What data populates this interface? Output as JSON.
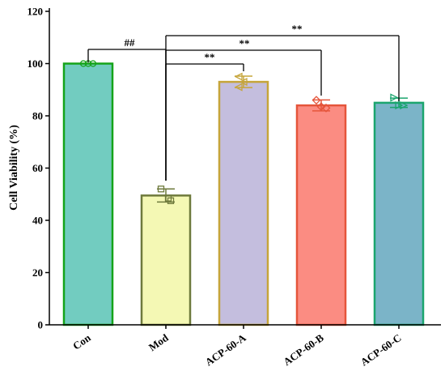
{
  "chart_data": {
    "type": "bar",
    "title": "",
    "xlabel": "",
    "ylabel": "Cell Viability (%)",
    "ylim": [
      0,
      120
    ],
    "yticks": [
      "0",
      "20",
      "40",
      "60",
      "80",
      "100",
      "120"
    ],
    "categories": [
      "Con",
      "Mod",
      "ACP-60-A",
      "ACP-60-B",
      "ACP-60-C"
    ],
    "values": [
      100,
      49.5,
      93,
      84,
      85
    ],
    "errors": [
      0,
      2.5,
      2.2,
      2.1,
      1.8
    ],
    "points": [
      [
        100,
        100,
        100
      ],
      [
        52,
        48.5,
        47.5
      ],
      [
        95,
        93,
        91
      ],
      [
        86,
        83,
        83.5
      ],
      [
        87,
        84,
        84
      ]
    ],
    "markers": [
      "circle",
      "square",
      "triangle",
      "diamond",
      "triangle-right"
    ],
    "fill_colors": [
      "#72CCC0",
      "#F4F8B4",
      "#C4BEDE",
      "#FB8C82",
      "#7BB4C8"
    ],
    "edge_colors": [
      "#15A319",
      "#6E7A3C",
      "#C6A53A",
      "#E5553B",
      "#1BA56E"
    ],
    "significance": [
      {
        "from": "Con",
        "to": "Mod",
        "label": "##"
      },
      {
        "from": "Mod",
        "to": "ACP-60-A",
        "label": "**"
      },
      {
        "from": "Mod",
        "to": "ACP-60-B",
        "label": "**"
      },
      {
        "from": "Mod",
        "to": "ACP-60-C",
        "label": "**"
      }
    ]
  }
}
